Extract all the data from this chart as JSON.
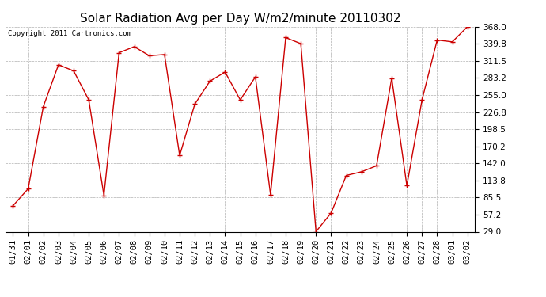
{
  "title": "Solar Radiation Avg per Day W/m2/minute 20110302",
  "copyright": "Copyright 2011 Cartronics.com",
  "dates": [
    "01/31",
    "02/01",
    "02/02",
    "02/03",
    "02/04",
    "02/05",
    "02/06",
    "02/07",
    "02/08",
    "02/09",
    "02/10",
    "02/11",
    "02/12",
    "02/13",
    "02/14",
    "02/15",
    "02/16",
    "02/17",
    "02/18",
    "02/19",
    "02/20",
    "02/21",
    "02/22",
    "02/23",
    "02/24",
    "02/25",
    "02/26",
    "02/27",
    "02/28",
    "03/01",
    "03/02"
  ],
  "values": [
    72.0,
    100.0,
    236.0,
    305.0,
    295.0,
    247.0,
    89.0,
    325.0,
    335.0,
    320.0,
    322.0,
    155.0,
    240.0,
    278.0,
    293.0,
    247.0,
    285.0,
    90.0,
    350.0,
    340.0,
    29.0,
    60.0,
    122.0,
    128.0,
    138.0,
    283.0,
    105.0,
    247.0,
    346.0,
    343.0,
    368.0
  ],
  "ylim": [
    29.0,
    368.0
  ],
  "yticks": [
    29.0,
    57.2,
    85.5,
    113.8,
    142.0,
    170.2,
    198.5,
    226.8,
    255.0,
    283.2,
    311.5,
    339.8,
    368.0
  ],
  "line_color": "#cc0000",
  "marker_color": "#cc0000",
  "bg_color": "#ffffff",
  "plot_bg_color": "#ffffff",
  "grid_color": "#b0b0b0",
  "title_fontsize": 11,
  "tick_fontsize": 7.5,
  "copyright_fontsize": 6.5
}
